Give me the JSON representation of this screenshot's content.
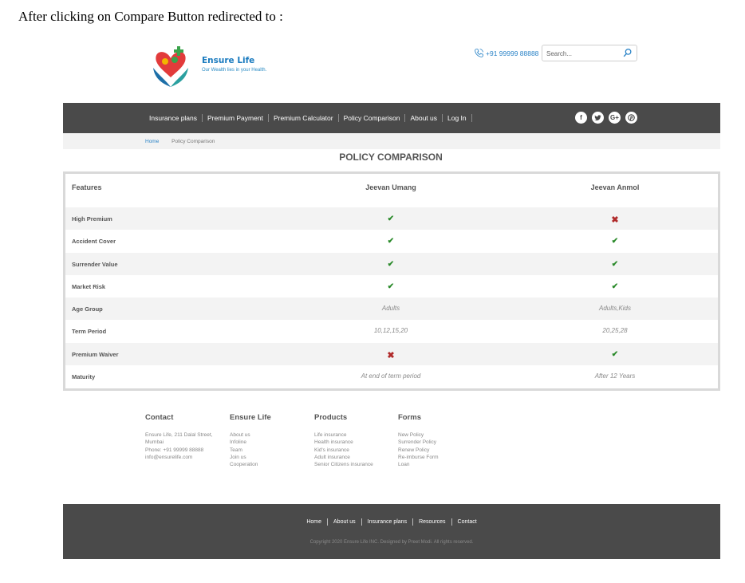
{
  "caption": "After clicking on Compare Button redirected to :",
  "brand": {
    "name": "Ensure Life",
    "tagline": "Our Wealth lies in your Health."
  },
  "header": {
    "phone": "+91 99999 88888",
    "search_placeholder": "Search..."
  },
  "nav": {
    "items": [
      "Insurance plans",
      "Premium Payment",
      "Premium Calculator",
      "Policy Comparison",
      "About us",
      "Log In"
    ],
    "social": [
      "f",
      "t",
      "G+",
      "p"
    ]
  },
  "breadcrumb": {
    "home": "Home",
    "current": "Policy Comparison"
  },
  "page_title": "POLICY COMPARISON",
  "table": {
    "headers": [
      "Features",
      "Jeevan Umang",
      "Jeevan Anmol"
    ],
    "rows": [
      {
        "feature": "High Premium",
        "a": "✔",
        "b": "✖"
      },
      {
        "feature": "Accident Cover",
        "a": "✔",
        "b": "✔"
      },
      {
        "feature": "Surrender Value",
        "a": "✔",
        "b": "✔"
      },
      {
        "feature": "Market Risk",
        "a": "✔",
        "b": "✔"
      },
      {
        "feature": "Age Group",
        "a": "Adults",
        "b": "Adults,Kids"
      },
      {
        "feature": "Term Period",
        "a": "10,12,15,20",
        "b": "20,25,28"
      },
      {
        "feature": "Premium Waiver",
        "a": "✖",
        "b": "✔"
      },
      {
        "feature": "Maturity",
        "a": "At end of term period",
        "b": "After 12 Years"
      }
    ]
  },
  "footer": {
    "contact": {
      "title": "Contact",
      "lines": [
        "Ensure Life, 211 Dalal Street,",
        "Mumbai",
        "Phone: +91 99999 88888",
        "info@ensurelife.com"
      ]
    },
    "ensure": {
      "title": "Ensure Life",
      "lines": [
        "About us",
        "Infoline",
        "Team",
        "Join us",
        "Cooperation"
      ]
    },
    "products": {
      "title": "Products",
      "lines": [
        "Life insurance",
        "Health insurance",
        "Kid's insurance",
        "Adult insurance",
        "Senior Citizens insurance"
      ]
    },
    "forms": {
      "title": "Forms",
      "lines": [
        "New Policy",
        "Surrender Policy",
        "Renew Policy",
        "Re-imburse Form",
        "Loan"
      ]
    }
  },
  "bottom": {
    "links": [
      "Home",
      "About us",
      "Insurance plans",
      "Resources",
      "Contact"
    ],
    "copyright": "Copyright 2020 Ensure Life INC. Designed by Preet Modi. All rights reserved."
  }
}
